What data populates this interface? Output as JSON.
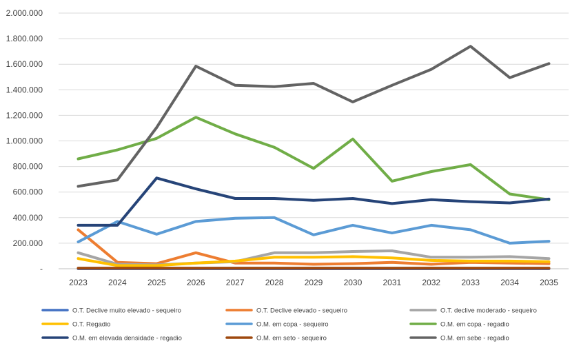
{
  "chart_data": {
    "type": "line",
    "title": "",
    "xlabel": "",
    "ylabel": "",
    "ylim": [
      0,
      2000000
    ],
    "yticks": [
      0,
      200000,
      400000,
      600000,
      800000,
      1000000,
      1200000,
      1400000,
      1600000,
      1800000,
      2000000
    ],
    "ytick_labels": [
      "-",
      "200.000",
      "400.000",
      "600.000",
      "800.000",
      "1.000.000",
      "1.200.000",
      "1.400.000",
      "1.600.000",
      "1.800.000",
      "2.000.000"
    ],
    "categories": [
      "2023",
      "2024",
      "2025",
      "2026",
      "2027",
      "2028",
      "2029",
      "2030",
      "2031",
      "2032",
      "2033",
      "2034",
      "2035"
    ],
    "grid": "horizontal",
    "legend_position": "bottom",
    "series": [
      {
        "name": "O.T. Declive muito elevado - sequeiro",
        "color": "#4472C4",
        "values": [
          0,
          0,
          0,
          0,
          0,
          0,
          0,
          0,
          0,
          0,
          0,
          0,
          0
        ]
      },
      {
        "name": "O.T. Declive elevado - sequeiro",
        "color": "#ED7D31",
        "values": [
          305000,
          50000,
          40000,
          125000,
          45000,
          45000,
          35000,
          40000,
          50000,
          35000,
          50000,
          45000,
          40000
        ]
      },
      {
        "name": "O.T. declive moderado - sequeiro",
        "color": "#A5A5A5",
        "values": [
          125000,
          35000,
          30000,
          45000,
          55000,
          125000,
          125000,
          135000,
          140000,
          90000,
          90000,
          95000,
          80000
        ]
      },
      {
        "name": "O.T. Regadio",
        "color": "#FFC000",
        "values": [
          80000,
          25000,
          25000,
          45000,
          60000,
          90000,
          90000,
          95000,
          85000,
          65000,
          60000,
          60000,
          55000
        ]
      },
      {
        "name": "O.M. em copa - sequeiro",
        "color": "#5B9BD5",
        "values": [
          210000,
          370000,
          270000,
          370000,
          395000,
          400000,
          265000,
          340000,
          280000,
          340000,
          305000,
          200000,
          215000
        ]
      },
      {
        "name": "O.M. em copa - regadio",
        "color": "#70AD47",
        "values": [
          860000,
          930000,
          1020000,
          1185000,
          1055000,
          950000,
          785000,
          1015000,
          685000,
          760000,
          815000,
          585000,
          540000
        ]
      },
      {
        "name": "O.M. em elevada densidade - regadio",
        "color": "#264478",
        "values": [
          340000,
          340000,
          710000,
          625000,
          550000,
          550000,
          535000,
          550000,
          510000,
          540000,
          525000,
          515000,
          545000
        ]
      },
      {
        "name": "O.M. em seto - sequeiro",
        "color": "#9E480E",
        "values": [
          5000,
          5000,
          5000,
          5000,
          5000,
          5000,
          5000,
          5000,
          5000,
          5000,
          5000,
          5000,
          5000
        ]
      },
      {
        "name": "O.M. em sebe - regadio",
        "color": "#636363",
        "values": [
          645000,
          695000,
          1105000,
          1585000,
          1435000,
          1425000,
          1450000,
          1305000,
          1435000,
          1560000,
          1740000,
          1495000,
          1605000
        ]
      }
    ]
  }
}
